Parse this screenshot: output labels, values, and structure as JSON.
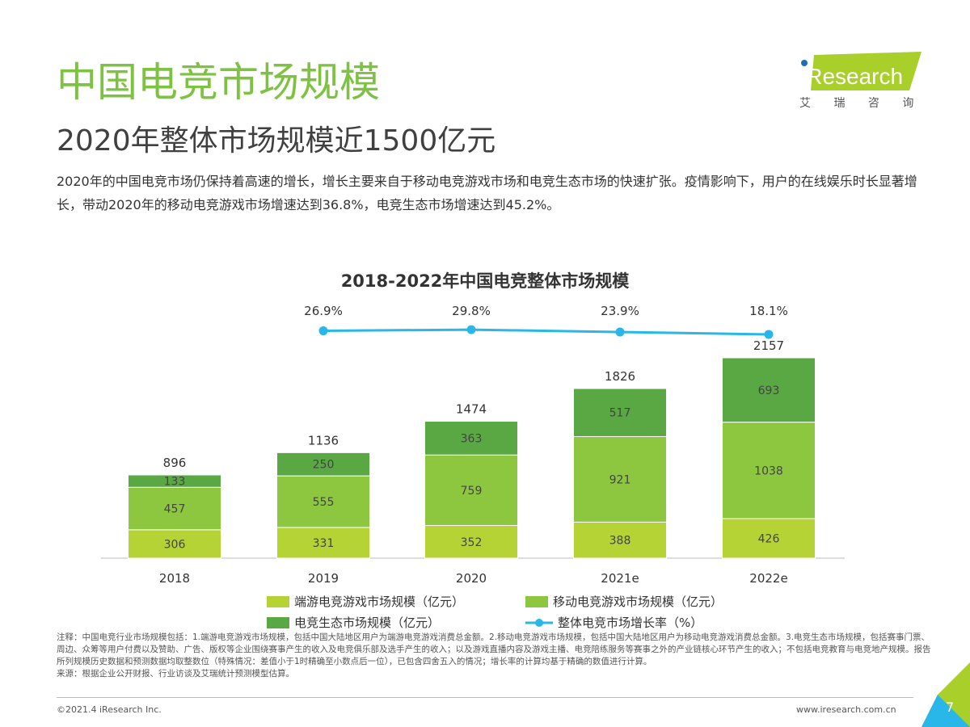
{
  "header": {
    "title": "中国电竞市场规模",
    "subtitle": "2020年整体市场规模近1500亿元",
    "description": "2020年的中国电竞市场仍保持着高速的增长，增长主要来自于移动电竞游戏市场和电竞生态市场的快速扩张。疫情影响下，用户的在线娱乐时长显著增长，带动2020年的移动电竞游戏市场增速达到36.8%，电竞生态市场增速达到45.2%。"
  },
  "logo": {
    "text": "iResearch",
    "sub": "艾 瑞 咨 询"
  },
  "colors": {
    "title": "#7ec242",
    "pc": "#b5d334",
    "mobile": "#8dc63f",
    "eco": "#5aa844",
    "growth": "#29b6e8"
  },
  "chart_data": {
    "type": "bar",
    "stacked": true,
    "title": "2018-2022年中国电竞整体市场规模",
    "categories": [
      "2018",
      "2019",
      "2020",
      "2021e",
      "2022e"
    ],
    "series": [
      {
        "name": "端游电竞游戏市场规模（亿元）",
        "values": [
          306,
          331,
          352,
          388,
          426
        ]
      },
      {
        "name": "移动电竞游戏市场规模（亿元）",
        "values": [
          457,
          555,
          759,
          921,
          1038
        ]
      },
      {
        "name": "电竞生态市场规模（亿元）",
        "values": [
          133,
          250,
          363,
          517,
          693
        ]
      }
    ],
    "totals": [
      896,
      1136,
      1474,
      1826,
      2157
    ],
    "line_series": {
      "name": "整体电竞市场增长率（%）",
      "categories": [
        "2019",
        "2020",
        "2021e",
        "2022e"
      ],
      "values": [
        26.9,
        29.8,
        23.9,
        18.1
      ],
      "labels": [
        "26.9%",
        "29.8%",
        "23.9%",
        "18.1%"
      ]
    },
    "legend_position": "bottom",
    "grid": false
  },
  "footer": {
    "notes": "注释：中国电竞行业市场规模包括：1.端游电竞游戏市场规模，包括中国大陆地区用户为端游电竞游戏消费总金额。2.移动电竞游戏市场规模，包括中国大陆地区用户为移动电竞游戏消费总金额。3.电竞生态市场规模，包括赛事门票、周边、众筹等用户付费以及赞助、广告、版权等企业围绕赛事产生的收入及电竞俱乐部及选手产生的收入；以及游戏直播内容及游戏主播、电竞陪练服务等赛事之外的产业链核心环节产生的收入；不包括电竞教育与电竞地产规模。报告所列规模历史数据和预测数据均取整数位（特殊情况：差值小于1时精确至小数点后一位），已包含四舍五入的情况；增长率的计算均基于精确的数值进行计算。",
    "source": "来源：根据企业公开财报、行业访谈及艾瑞统计预测模型估算。",
    "copyright": "©2021.4 iResearch Inc.",
    "site": "www.iresearch.com.cn",
    "page": "7"
  }
}
